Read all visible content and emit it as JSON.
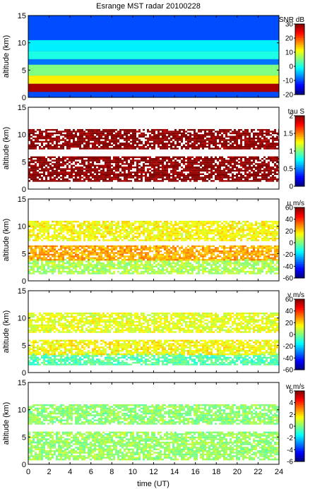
{
  "chart_data": {
    "type": "heatmap",
    "title": "Esrange MST radar 20100228",
    "xlabel": "time (UT)",
    "x_ticks": [
      0,
      2,
      4,
      6,
      8,
      10,
      12,
      14,
      16,
      18,
      20,
      22,
      24
    ],
    "xlim": [
      0,
      24
    ],
    "panels": [
      {
        "id": "snr",
        "ylabel": "altitude (km)",
        "ylim": [
          0,
          15
        ],
        "y_ticks": [
          0,
          5,
          10,
          15
        ],
        "colorbar_label": "SNR dB",
        "colorbar_range": [
          -20,
          30
        ],
        "colorbar_ticks": [
          -20,
          -10,
          0,
          10,
          20,
          30
        ],
        "layers": [
          {
            "alt": [
              1.0,
              2.5
            ],
            "value": 28
          },
          {
            "alt": [
              2.5,
              4.0
            ],
            "value": 12
          },
          {
            "alt": [
              4.0,
              6.0
            ],
            "value": 5
          },
          {
            "alt": [
              6.0,
              7.0
            ],
            "value": -8
          },
          {
            "alt": [
              7.0,
              8.5
            ],
            "value": 0
          },
          {
            "alt": [
              8.5,
              10.5
            ],
            "value": -2
          },
          {
            "alt": [
              10.5,
              15.0
            ],
            "value": -10
          }
        ]
      },
      {
        "id": "tau",
        "ylabel": "altitude (km)",
        "ylim": [
          0,
          15
        ],
        "y_ticks": [
          0,
          5,
          10,
          15
        ],
        "colorbar_label": "tau S",
        "colorbar_range": [
          0,
          2
        ],
        "colorbar_ticks": [
          0,
          0.5,
          1,
          1.5,
          2
        ],
        "layers": [
          {
            "alt": [
              1.5,
              6.0
            ],
            "value": 2.0
          },
          {
            "alt": [
              7.5,
              11.0
            ],
            "value": 2.0
          }
        ]
      },
      {
        "id": "u",
        "ylabel": "altitude (km)",
        "ylim": [
          0,
          15
        ],
        "y_ticks": [
          0,
          5,
          10,
          15
        ],
        "colorbar_label": "u m/s",
        "colorbar_range": [
          -60,
          60
        ],
        "colorbar_ticks": [
          -60,
          -40,
          -20,
          0,
          20,
          40,
          60
        ],
        "layers": [
          {
            "alt": [
              1.5,
              4.0
            ],
            "value": 5
          },
          {
            "alt": [
              4.0,
              6.5
            ],
            "value": 25
          },
          {
            "alt": [
              7.5,
              11.0
            ],
            "value": 15
          }
        ]
      },
      {
        "id": "v",
        "ylabel": "altitude (km)",
        "ylim": [
          0,
          15
        ],
        "y_ticks": [
          0,
          5,
          10,
          15
        ],
        "colorbar_label": "v m/s",
        "colorbar_range": [
          -60,
          60
        ],
        "colorbar_ticks": [
          -60,
          -40,
          -20,
          0,
          20,
          40,
          60
        ],
        "layers": [
          {
            "alt": [
              1.5,
              3.5
            ],
            "value": -5
          },
          {
            "alt": [
              3.5,
              6.0
            ],
            "value": 15
          },
          {
            "alt": [
              7.5,
              11.0
            ],
            "value": 12
          }
        ]
      },
      {
        "id": "w",
        "ylabel": "altitude (km)",
        "ylim": [
          0,
          15
        ],
        "y_ticks": [
          0,
          5,
          10,
          15
        ],
        "colorbar_label": "w m/s",
        "colorbar_range": [
          -6,
          6
        ],
        "colorbar_ticks": [
          -6,
          -4,
          -2,
          0,
          2,
          4,
          6
        ],
        "layers": [
          {
            "alt": [
              1.0,
              6.0
            ],
            "value": 0.3
          },
          {
            "alt": [
              7.5,
              11.0
            ],
            "value": 0.2
          }
        ]
      }
    ]
  }
}
